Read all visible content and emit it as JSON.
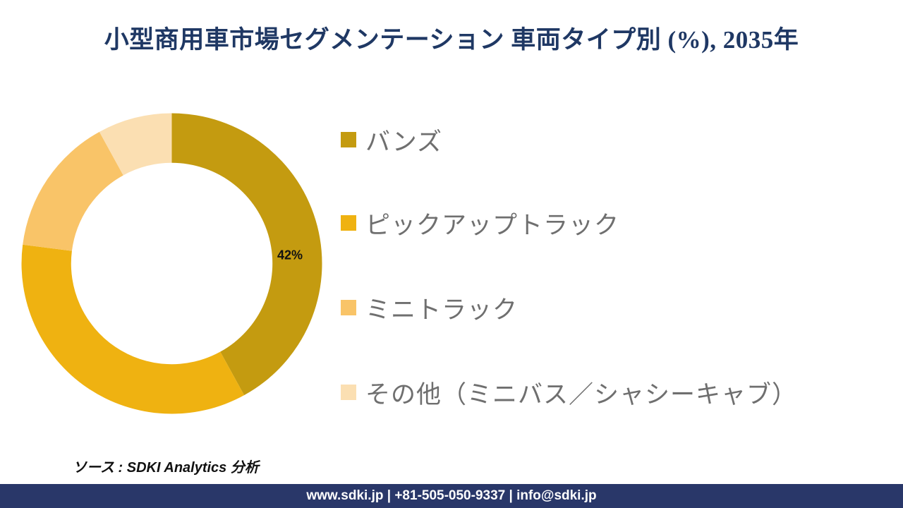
{
  "title": {
    "text": "小型商用車市場セグメンテーション 車両タイプ別 (%), 2035年",
    "color": "#1F3864"
  },
  "chart_data": {
    "type": "pie",
    "subtype": "donut",
    "title": "小型商用車市場セグメンテーション 車両タイプ別 (%), 2035年",
    "unit": "%",
    "direction": "clockwise",
    "start_angle_deg": 0,
    "inner_radius_ratio": 0.67,
    "legend_position": "right",
    "categories": [
      "バンズ",
      "ピックアップトラック",
      "ミニトラック",
      "その他（ミニバス／シャシーキャブ）"
    ],
    "values": [
      42,
      35,
      15,
      8
    ],
    "colors": [
      "#C49B10",
      "#EFB211",
      "#F9C468",
      "#FBDFB2"
    ],
    "data_labels": [
      "42%",
      "",
      "",
      ""
    ]
  },
  "legend": {
    "text_color": "#6F6F6F",
    "items": [
      {
        "label": "バンズ",
        "color": "#C49B10"
      },
      {
        "label": "ピックアップトラック",
        "color": "#EFB211"
      },
      {
        "label": "ミニトラック",
        "color": "#F9C468"
      },
      {
        "label": "その他（ミニバス／シャシーキャブ）",
        "color": "#FBDFB2"
      }
    ]
  },
  "source": {
    "text": "ソース : SDKI Analytics 分析"
  },
  "footer": {
    "text": "www.sdki.jp | +81-505-050-9337 | info@sdki.jp",
    "background": "#293769",
    "text_color": "#FFFFFF"
  }
}
